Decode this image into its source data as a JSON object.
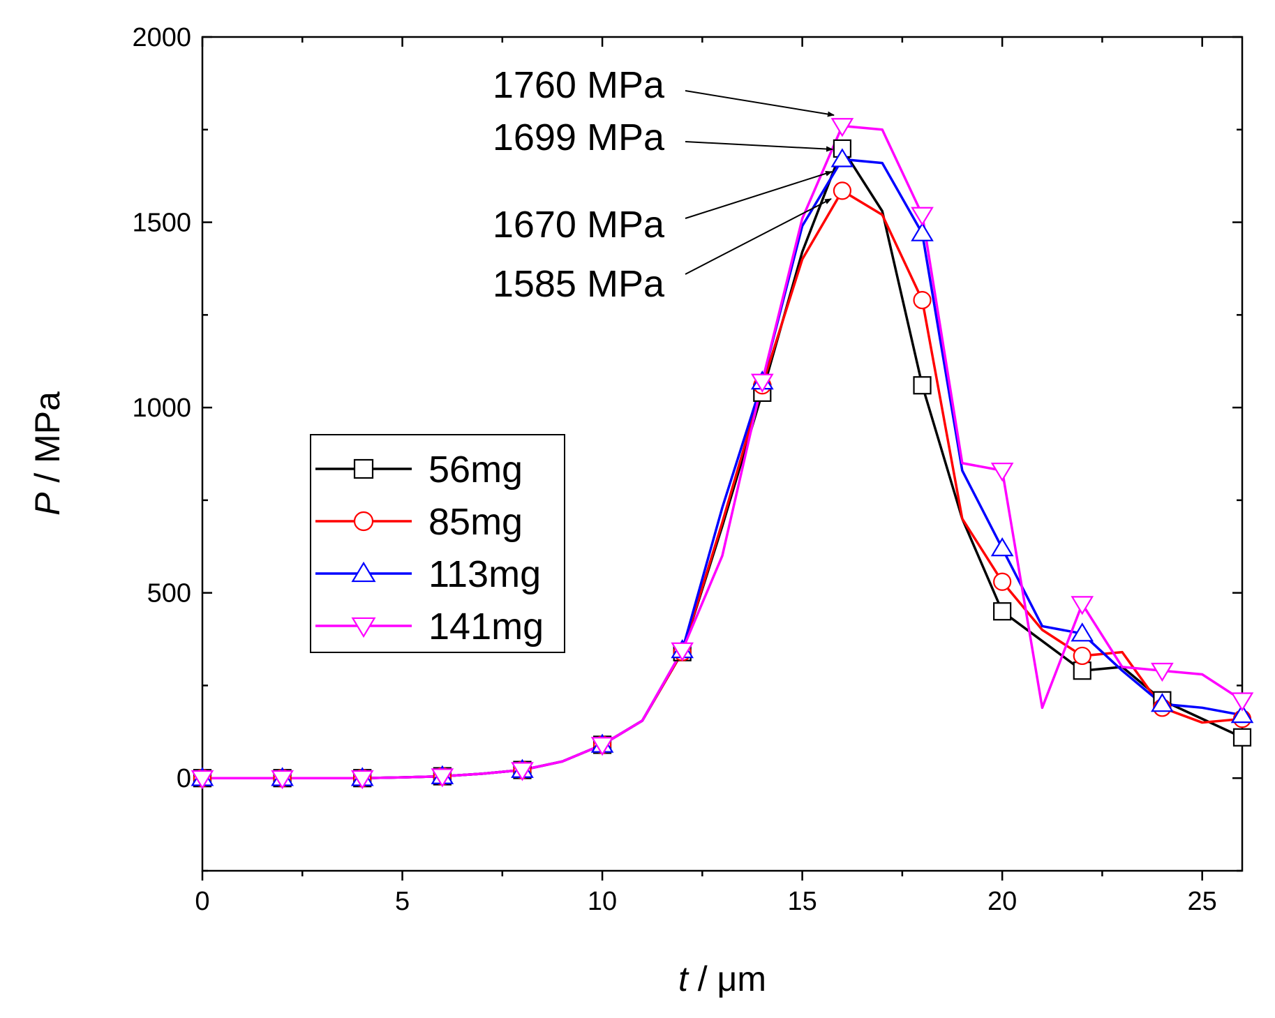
{
  "chart_data": {
    "type": "line",
    "title": "",
    "xlabel": "t / μm",
    "xlabel_symbol": "t",
    "xlabel_unit": " / μm",
    "ylabel": "P / MPa",
    "ylabel_symbol": "P",
    "ylabel_unit": " / MPa",
    "xlim": [
      0,
      26
    ],
    "ylim": [
      -250,
      2000
    ],
    "xticks": [
      0,
      5,
      10,
      15,
      20,
      25
    ],
    "yticks": [
      0,
      500,
      1000,
      1500,
      2000
    ],
    "x": [
      0,
      1,
      2,
      3,
      4,
      5,
      6,
      7,
      8,
      9,
      10,
      11,
      12,
      13,
      14,
      15,
      16,
      17,
      18,
      19,
      20,
      21,
      22,
      23,
      24,
      25,
      26
    ],
    "series": [
      {
        "name": "56mg",
        "color": "#000000",
        "marker": "square",
        "values": [
          0,
          0,
          0,
          0,
          0,
          2,
          5,
          12,
          22,
          45,
          90,
          155,
          340,
          680,
          1040,
          1420,
          1699,
          1530,
          1060,
          700,
          450,
          370,
          290,
          300,
          210,
          160,
          110
        ]
      },
      {
        "name": "85mg",
        "color": "#ff0000",
        "marker": "circle",
        "values": [
          0,
          0,
          0,
          0,
          0,
          2,
          5,
          12,
          22,
          45,
          90,
          155,
          340,
          690,
          1060,
          1400,
          1585,
          1520,
          1290,
          700,
          530,
          400,
          330,
          340,
          190,
          150,
          160
        ]
      },
      {
        "name": "113mg",
        "color": "#0000ff",
        "marker": "triangle-up",
        "values": [
          0,
          0,
          0,
          0,
          0,
          2,
          5,
          12,
          22,
          45,
          90,
          155,
          345,
          730,
          1070,
          1490,
          1670,
          1660,
          1470,
          830,
          620,
          410,
          390,
          290,
          200,
          190,
          170
        ]
      },
      {
        "name": "141mg",
        "color": "#ff00ff",
        "marker": "triangle-down",
        "values": [
          0,
          0,
          0,
          0,
          0,
          2,
          5,
          12,
          22,
          45,
          90,
          155,
          345,
          600,
          1070,
          1510,
          1760,
          1750,
          1520,
          850,
          830,
          190,
          470,
          300,
          290,
          280,
          210
        ]
      }
    ],
    "annotations": [
      {
        "text": "1760 MPa",
        "target_x": 16,
        "target_y": 1760
      },
      {
        "text": "1699 MPa",
        "target_x": 16,
        "target_y": 1699
      },
      {
        "text": "1670 MPa",
        "target_x": 16,
        "target_y": 1670
      },
      {
        "text": "1585 MPa",
        "target_x": 16,
        "target_y": 1585
      }
    ],
    "legend_position": "center-left"
  }
}
